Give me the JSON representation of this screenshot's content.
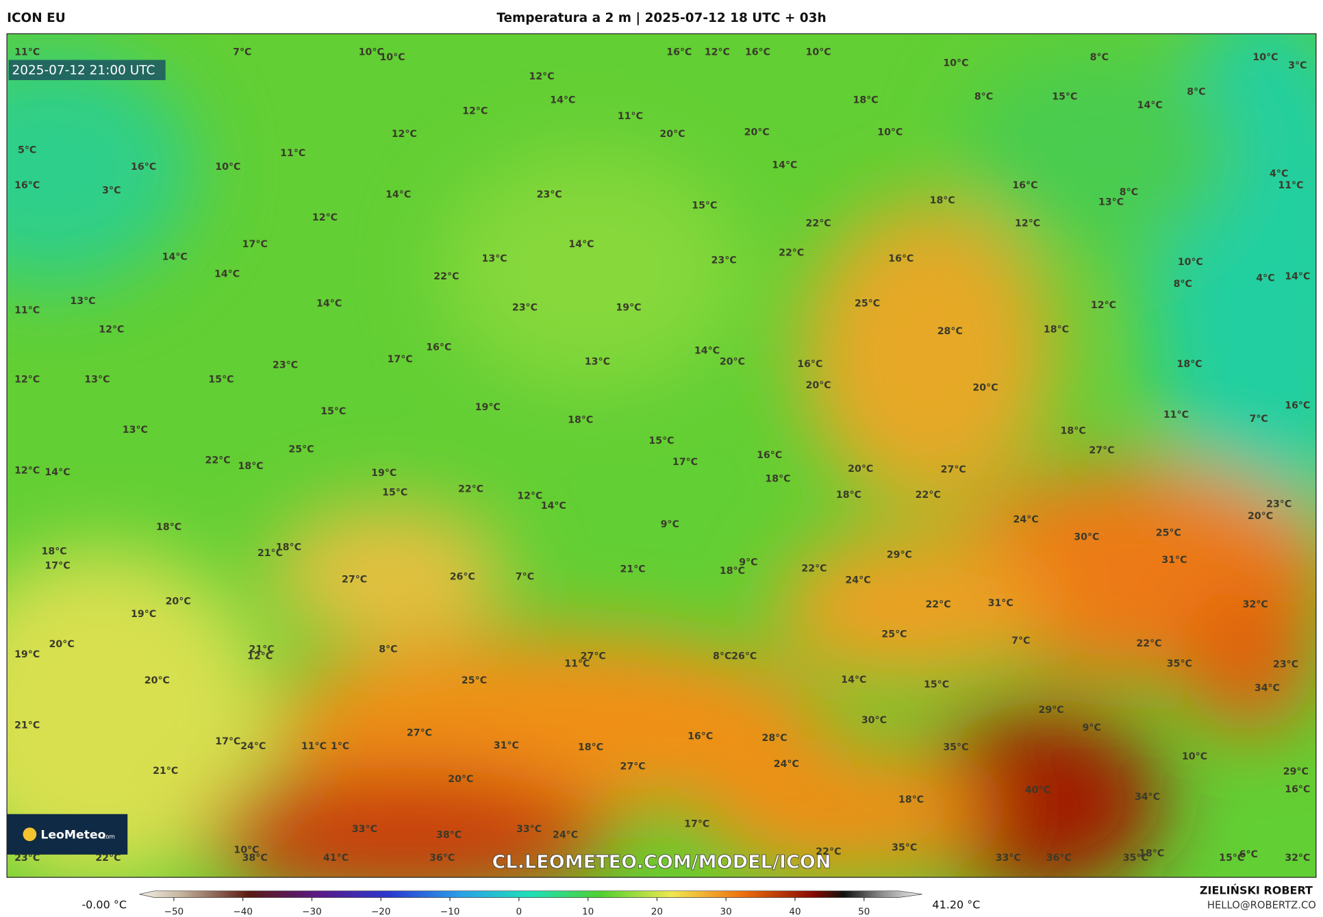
{
  "header": {
    "model": "ICON EU",
    "title": "Temperatura a 2 m | 2025-07-12 18 UTC + 03h",
    "author": "ZIELIŃSKI ROBERT",
    "contact": "HELLO@ROBERTZ.CO"
  },
  "map": {
    "valid_time": "2025-07-12 21:00 UTC",
    "watermark": "CL.LEOMETEO.COM/MODEL/ICON",
    "logo": "LeoMeteo",
    "logo_suffix": ".com",
    "temperature_labels": [
      "11°C",
      "7°C",
      "10°C",
      "10°C",
      "16°C",
      "12°C",
      "16°C",
      "10°C",
      "10°C",
      "8°C",
      "10°C",
      "3°C",
      "12°C",
      "14°C",
      "12°C",
      "11°C",
      "18°C",
      "8°C",
      "15°C",
      "8°C",
      "14°C",
      "12°C",
      "20°C",
      "20°C",
      "10°C",
      "11°C",
      "5°C",
      "16°C",
      "10°C",
      "14°C",
      "4°C",
      "11°C",
      "16°C",
      "3°C",
      "16°C",
      "8°C",
      "14°C",
      "23°C",
      "18°C",
      "13°C",
      "15°C",
      "12°C",
      "22°C",
      "12°C",
      "17°C",
      "14°C",
      "22°C",
      "14°C",
      "13°C",
      "23°C",
      "16°C",
      "10°C",
      "14°C",
      "22°C",
      "8°C",
      "4°C",
      "14°C",
      "13°C",
      "14°C",
      "23°C",
      "19°C",
      "25°C",
      "12°C",
      "11°C",
      "12°C",
      "28°C",
      "18°C",
      "16°C",
      "14°C",
      "17°C",
      "13°C",
      "20°C",
      "16°C",
      "18°C",
      "23°C",
      "12°C",
      "13°C",
      "15°C",
      "20°C",
      "20°C",
      "15°C",
      "19°C",
      "18°C",
      "11°C",
      "7°C",
      "16°C",
      "13°C",
      "18°C",
      "15°C",
      "25°C",
      "27°C",
      "22°C",
      "18°C",
      "17°C",
      "16°C",
      "12°C",
      "14°C",
      "19°C",
      "20°C",
      "27°C",
      "22°C",
      "15°C",
      "12°C",
      "18°C",
      "18°C",
      "22°C",
      "14°C",
      "23°C",
      "20°C",
      "24°C",
      "18°C",
      "9°C",
      "30°C",
      "25°C",
      "18°C",
      "18°C",
      "21°C",
      "29°C",
      "31°C",
      "17°C",
      "9°C",
      "18°C",
      "21°C",
      "22°C",
      "26°C",
      "7°C",
      "27°C",
      "24°C",
      "20°C",
      "31°C",
      "22°C",
      "32°C",
      "19°C",
      "25°C",
      "21°C",
      "20°C",
      "22°C",
      "8°C",
      "7°C",
      "12°C",
      "19°C",
      "27°C",
      "26°C",
      "8°C",
      "11°C",
      "35°C",
      "23°C",
      "20°C",
      "25°C",
      "14°C",
      "15°C",
      "34°C",
      "30°C",
      "29°C",
      "9°C",
      "21°C",
      "27°C",
      "16°C",
      "28°C",
      "17°C",
      "24°C",
      "11°C",
      "1°C",
      "31°C",
      "18°C",
      "35°C",
      "10°C",
      "24°C",
      "21°C",
      "27°C",
      "29°C",
      "16°C",
      "20°C",
      "40°C",
      "34°C",
      "18°C",
      "17°C",
      "33°C",
      "33°C",
      "24°C",
      "38°C",
      "10°C",
      "35°C",
      "22°C",
      "23°C",
      "22°C",
      "38°C",
      "41°C",
      "36°C",
      "33°C",
      "36°C",
      "35°C",
      "18°C",
      "15°C",
      "6°C",
      "32°C"
    ]
  },
  "colorbar": {
    "min_label": "-0.00 °C",
    "max_label": "41.20 °C",
    "range": [
      -55,
      55
    ],
    "ticks": [
      {
        "value": -50,
        "label": "−50"
      },
      {
        "value": -40,
        "label": "−40"
      },
      {
        "value": -30,
        "label": "−30"
      },
      {
        "value": -20,
        "label": "−20"
      },
      {
        "value": -10,
        "label": "−10"
      },
      0,
      10,
      20,
      30,
      40,
      50
    ]
  }
}
